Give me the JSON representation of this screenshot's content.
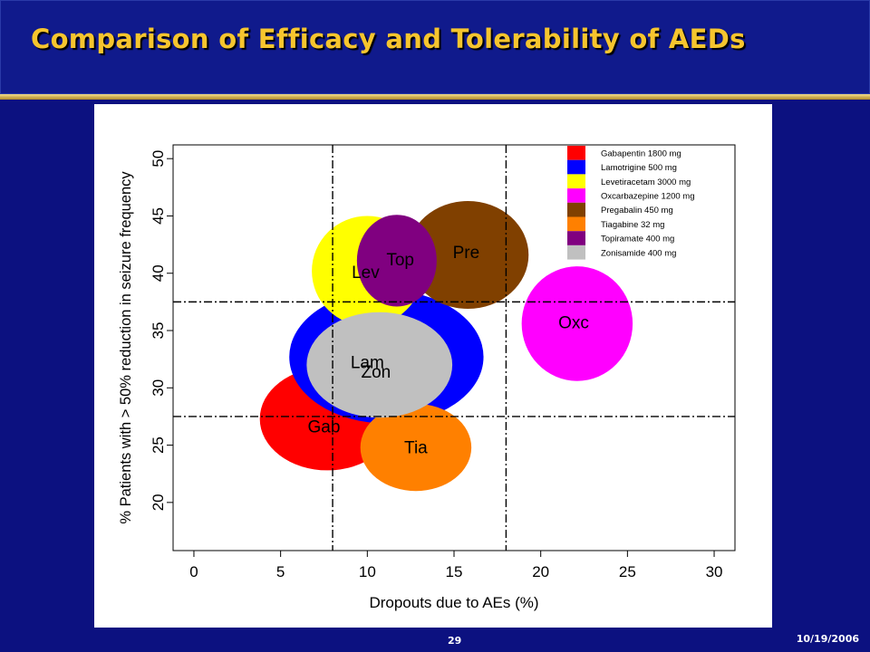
{
  "slide": {
    "title": "Comparison of Efficacy and Tolerability of AEDs",
    "page_number": "29",
    "date": "10/19/2006"
  },
  "chart_data": {
    "type": "bubble",
    "title": "",
    "xlabel": "Dropouts due to AEs (%)",
    "ylabel": "% Patients with > 50% reduction in seizure frequency",
    "xlim": [
      -1.2,
      31.2
    ],
    "ylim": [
      15.8,
      51.2
    ],
    "xticks": [
      0,
      5,
      10,
      15,
      20,
      25,
      30
    ],
    "yticks": [
      20,
      25,
      30,
      35,
      40,
      45,
      50
    ],
    "grid": false,
    "legend_position": "top-right",
    "reference_lines": {
      "vertical": [
        8,
        18
      ],
      "horizontal": [
        27.5,
        37.5
      ]
    },
    "series": [
      {
        "label": "Gab",
        "name": "Gabapentin 1800 mg",
        "color": "#ff0000",
        "x": 7.7,
        "y": 27.3,
        "rx": 3.9,
        "ry": 4.5,
        "label_x": 7.5,
        "label_y": 26.5
      },
      {
        "label": "Lam",
        "name": "Lamotrigine 500 mg",
        "color": "#0000ff",
        "x": 11.1,
        "y": 32.7,
        "rx": 5.6,
        "ry": 5.8,
        "label_x": 10.0,
        "label_y": 32.1
      },
      {
        "label": "Lev",
        "name": "Levetiracetam 3000 mg",
        "color": "#ffff00",
        "x": 10.0,
        "y": 40.2,
        "rx": 3.2,
        "ry": 4.8,
        "label_x": 9.9,
        "label_y": 40.0
      },
      {
        "label": "Oxc",
        "name": "Oxcarbazepine 1200 mg",
        "color": "#ff00ff",
        "x": 22.1,
        "y": 35.6,
        "rx": 3.2,
        "ry": 5.0,
        "label_x": 21.9,
        "label_y": 35.6
      },
      {
        "label": "Pre",
        "name": "Pregabalin 450 mg",
        "color": "#804000",
        "x": 15.8,
        "y": 41.6,
        "rx": 3.5,
        "ry": 4.7,
        "label_x": 15.7,
        "label_y": 41.7
      },
      {
        "label": "Tia",
        "name": "Tiagabine 32 mg",
        "color": "#ff8000",
        "x": 12.8,
        "y": 24.8,
        "rx": 3.2,
        "ry": 3.8,
        "label_x": 12.8,
        "label_y": 24.7
      },
      {
        "label": "Top",
        "name": "Topiramate 400 mg",
        "color": "#800080",
        "x": 11.7,
        "y": 41.1,
        "rx": 2.3,
        "ry": 4.0,
        "label_x": 11.9,
        "label_y": 41.1
      },
      {
        "label": "Zon",
        "name": "Zonisamide 400 mg",
        "color": "#c0c0c0",
        "x": 10.7,
        "y": 32.0,
        "rx": 4.2,
        "ry": 4.6,
        "label_x": 10.5,
        "label_y": 31.3
      }
    ]
  }
}
